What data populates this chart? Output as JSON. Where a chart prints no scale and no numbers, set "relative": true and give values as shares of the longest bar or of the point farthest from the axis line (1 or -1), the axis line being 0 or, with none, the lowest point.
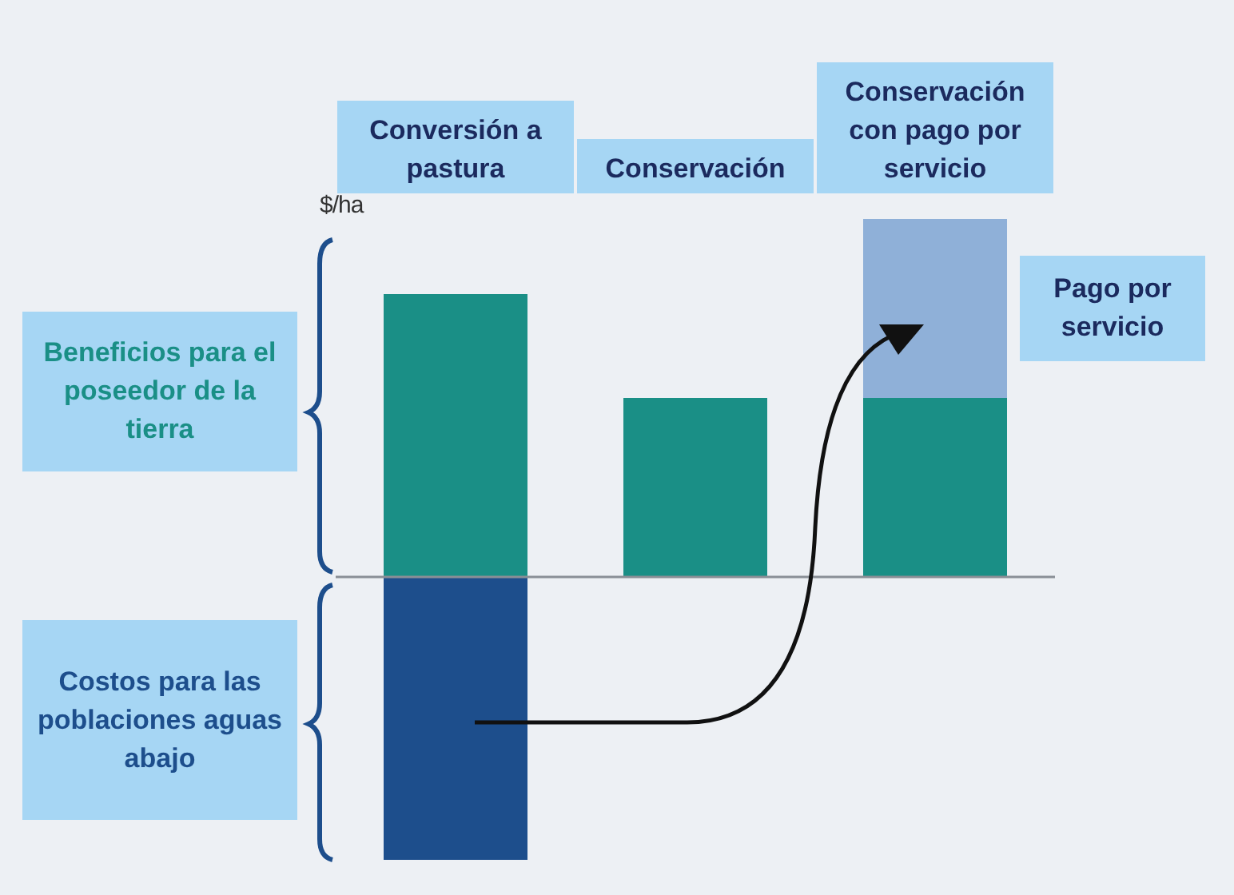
{
  "chart_data": {
    "type": "bar",
    "relative": true,
    "stacked": true,
    "ylabel": "$/ha",
    "legend": false,
    "categories": [
      "Conversión a pastura",
      "Conservación",
      "Conservación con pago por servicio"
    ],
    "series": [
      {
        "name": "Beneficios para el poseedor de la tierra",
        "color": "#1a8f86",
        "values": [
          0.79,
          0.5,
          0.5
        ]
      },
      {
        "name": "Costos para las poblaciones aguas abajo",
        "color": "#1d4e8c",
        "values": [
          -0.79,
          null,
          null
        ]
      },
      {
        "name": "Pago por servicio",
        "color": "#8fb0d8",
        "values": [
          null,
          null,
          0.5
        ]
      }
    ]
  }
}
